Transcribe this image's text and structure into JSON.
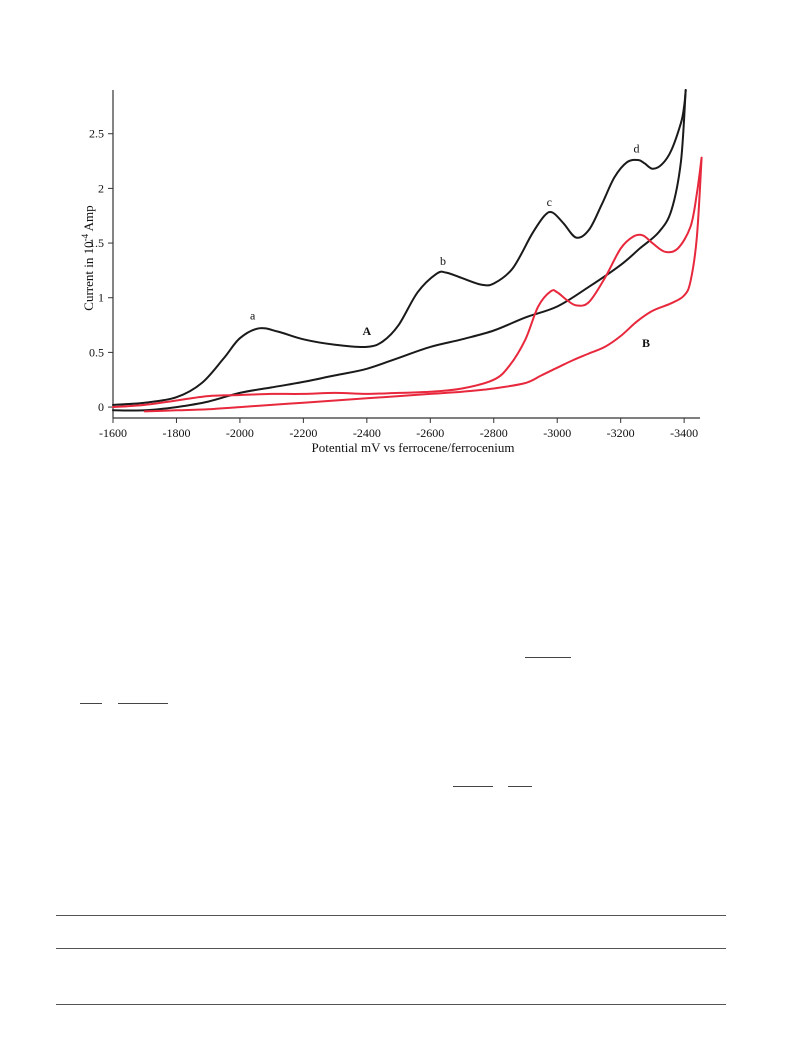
{
  "chart_data": {
    "type": "line",
    "xlabel": "Potential mV   vs   ferrocene/ferrocenium",
    "ylabel_main": "Current in 10",
    "ylabel_exp": "-4",
    "ylabel_unit": " Amp",
    "xlim": [
      -1600,
      -3450
    ],
    "ylim": [
      -0.1,
      2.9
    ],
    "x_ticks": [
      -1600,
      -1800,
      -2000,
      -2200,
      -2400,
      -2600,
      -2800,
      -3000,
      -3200,
      -3400
    ],
    "y_ticks": [
      0,
      0.5,
      1,
      1.5,
      2,
      2.5
    ],
    "grid": false,
    "colors": {
      "A": "#1a1a1a",
      "B": "#e8283c"
    },
    "series": [
      {
        "name": "A",
        "branch": "forward",
        "x": [
          -1600,
          -1700,
          -1800,
          -1880,
          -1950,
          -2000,
          -2060,
          -2120,
          -2200,
          -2300,
          -2400,
          -2450,
          -2500,
          -2560,
          -2620,
          -2650,
          -2700,
          -2760,
          -2800,
          -2860,
          -2920,
          -2960,
          -2985,
          -3020,
          -3060,
          -3100,
          -3140,
          -3180,
          -3220,
          -3255,
          -3275,
          -3300,
          -3330,
          -3360,
          -3390,
          -3400,
          -3405
        ],
        "y": [
          0.02,
          0.04,
          0.09,
          0.22,
          0.45,
          0.63,
          0.72,
          0.69,
          0.62,
          0.57,
          0.55,
          0.6,
          0.75,
          1.05,
          1.22,
          1.23,
          1.18,
          1.12,
          1.13,
          1.27,
          1.58,
          1.75,
          1.78,
          1.68,
          1.55,
          1.62,
          1.85,
          2.1,
          2.24,
          2.26,
          2.23,
          2.18,
          2.22,
          2.35,
          2.6,
          2.75,
          2.9
        ]
      },
      {
        "name": "",
        "branch": "reverse",
        "x": [
          -3405,
          -3390,
          -3360,
          -3320,
          -3260,
          -3200,
          -3100,
          -3000,
          -2900,
          -2800,
          -2700,
          -2600,
          -2500,
          -2400,
          -2300,
          -2200,
          -2100,
          -2000,
          -1900,
          -1800,
          -1700,
          -1600
        ],
        "y": [
          2.9,
          2.25,
          1.8,
          1.6,
          1.45,
          1.3,
          1.1,
          0.92,
          0.82,
          0.7,
          0.62,
          0.55,
          0.45,
          0.35,
          0.29,
          0.23,
          0.18,
          0.13,
          0.05,
          0.0,
          -0.03,
          -0.03
        ]
      },
      {
        "name": "B",
        "branch": "forward",
        "x": [
          -1600,
          -1700,
          -1800,
          -1900,
          -2000,
          -2100,
          -2200,
          -2300,
          -2400,
          -2500,
          -2600,
          -2700,
          -2800,
          -2850,
          -2900,
          -2940,
          -2980,
          -3000,
          -3030,
          -3060,
          -3100,
          -3150,
          -3200,
          -3240,
          -3270,
          -3300,
          -3340,
          -3380,
          -3420,
          -3440,
          -3455
        ],
        "y": [
          0.0,
          0.02,
          0.06,
          0.1,
          0.11,
          0.12,
          0.12,
          0.13,
          0.12,
          0.13,
          0.14,
          0.17,
          0.25,
          0.38,
          0.62,
          0.92,
          1.06,
          1.05,
          0.98,
          0.93,
          0.96,
          1.18,
          1.45,
          1.56,
          1.57,
          1.5,
          1.42,
          1.45,
          1.65,
          1.95,
          2.28
        ]
      },
      {
        "name": "",
        "branch": "reverse",
        "x": [
          -3455,
          -3440,
          -3420,
          -3400,
          -3360,
          -3300,
          -3250,
          -3200,
          -3150,
          -3100,
          -3050,
          -3000,
          -2950,
          -2900,
          -2800,
          -2700,
          -2600,
          -2500,
          -2400,
          -2300,
          -2200,
          -2100,
          -2000,
          -1900,
          -1800,
          -1700
        ],
        "y": [
          2.28,
          1.55,
          1.15,
          1.02,
          0.95,
          0.88,
          0.78,
          0.65,
          0.55,
          0.49,
          0.43,
          0.36,
          0.29,
          0.22,
          0.17,
          0.14,
          0.12,
          0.1,
          0.08,
          0.06,
          0.04,
          0.02,
          0.0,
          -0.02,
          -0.03,
          -0.04
        ]
      }
    ],
    "annotations": [
      {
        "text": "a",
        "x": -2040,
        "y": 0.8
      },
      {
        "text": "b",
        "x": -2640,
        "y": 1.3
      },
      {
        "text": "c",
        "x": -2975,
        "y": 1.84
      },
      {
        "text": "d",
        "x": -3250,
        "y": 2.33
      },
      {
        "text": "A",
        "x": -2400,
        "y": 0.66,
        "bold": true
      },
      {
        "text": "B",
        "x": -3280,
        "y": 0.55,
        "bold": true
      }
    ]
  }
}
